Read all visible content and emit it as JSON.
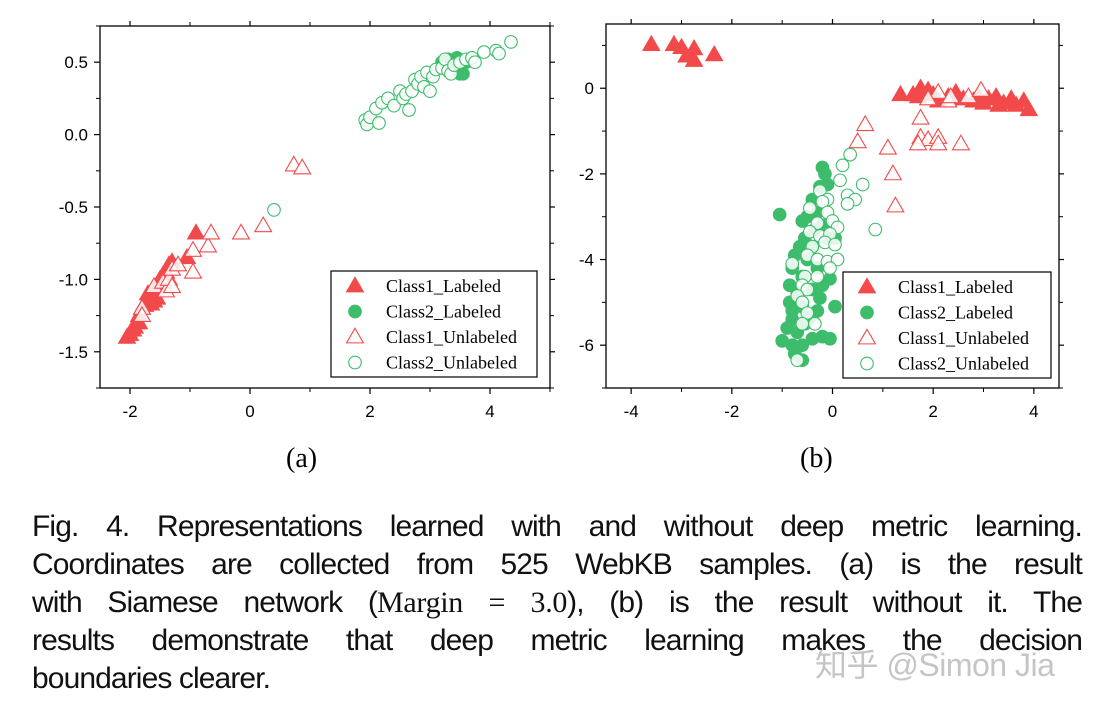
{
  "colors": {
    "class1": "#f24a4a",
    "class2": "#3dbd6b",
    "axis": "#000000"
  },
  "chart_data": [
    {
      "type": "scatter",
      "panel_label": "(a)",
      "xlim": [
        -2.5,
        5
      ],
      "ylim": [
        -1.75,
        0.75
      ],
      "xticks": [
        -2,
        0,
        2,
        4
      ],
      "xtick_labels": [
        "-2",
        "0",
        "2",
        "4"
      ],
      "yticks": [
        0.5,
        0.0,
        -0.5,
        -1.0,
        -1.5
      ],
      "ytick_labels": [
        "0.5",
        "0.0",
        "-0.5",
        "-1.0",
        "-1.5"
      ],
      "grid": false,
      "legend_placement": "bottom-right",
      "series": [
        {
          "name": "Class1_Labeled",
          "marker": "triangle-filled",
          "color": "#f24a4a",
          "points": [
            [
              -2.05,
              -1.4
            ],
            [
              -2.0,
              -1.38
            ],
            [
              -1.95,
              -1.35
            ],
            [
              -1.92,
              -1.33
            ],
            [
              -1.9,
              -1.3
            ],
            [
              -1.85,
              -1.3
            ],
            [
              -1.85,
              -1.25
            ],
            [
              -1.8,
              -1.2
            ],
            [
              -1.75,
              -1.18
            ],
            [
              -1.7,
              -1.15
            ],
            [
              -1.7,
              -1.1
            ],
            [
              -1.65,
              -1.17
            ],
            [
              -1.65,
              -1.12
            ],
            [
              -1.6,
              -1.15
            ],
            [
              -1.6,
              -1.1
            ],
            [
              -1.55,
              -1.13
            ],
            [
              -1.55,
              -1.05
            ],
            [
              -1.5,
              -1.0
            ],
            [
              -1.45,
              -0.97
            ],
            [
              -1.4,
              -0.95
            ],
            [
              -1.35,
              -0.9
            ],
            [
              -1.3,
              -0.88
            ],
            [
              -1.05,
              -0.85
            ],
            [
              -0.9,
              -0.68
            ]
          ]
        },
        {
          "name": "Class2_Labeled",
          "marker": "circle-filled",
          "color": "#3dbd6b",
          "points": [
            [
              3.2,
              0.5
            ],
            [
              3.3,
              0.52
            ],
            [
              3.35,
              0.45
            ],
            [
              3.4,
              0.5
            ],
            [
              3.45,
              0.53
            ],
            [
              3.5,
              0.42
            ],
            [
              3.55,
              0.42
            ],
            [
              3.6,
              0.5
            ]
          ]
        },
        {
          "name": "Class1_Unlabeled",
          "marker": "triangle-open",
          "color": "#f24a4a",
          "points": [
            [
              -1.8,
              -1.2
            ],
            [
              -1.8,
              -1.25
            ],
            [
              -1.6,
              -1.05
            ],
            [
              -1.45,
              -1.02
            ],
            [
              -1.4,
              -1.08
            ],
            [
              -1.35,
              -1.0
            ],
            [
              -1.3,
              -1.05
            ],
            [
              -1.3,
              -0.93
            ],
            [
              -1.2,
              -0.9
            ],
            [
              -0.95,
              -0.95
            ],
            [
              -0.95,
              -0.8
            ],
            [
              -0.7,
              -0.77
            ],
            [
              -0.65,
              -0.68
            ],
            [
              -0.15,
              -0.68
            ],
            [
              0.22,
              -0.63
            ],
            [
              0.73,
              -0.21
            ],
            [
              0.87,
              -0.23
            ]
          ]
        },
        {
          "name": "Class2_Unlabeled",
          "marker": "circle-open",
          "color": "#3dbd6b",
          "points": [
            [
              1.92,
              0.1
            ],
            [
              1.95,
              0.07
            ],
            [
              2.0,
              0.12
            ],
            [
              2.1,
              0.18
            ],
            [
              2.15,
              0.08
            ],
            [
              2.2,
              0.22
            ],
            [
              2.3,
              0.25
            ],
            [
              2.4,
              0.2
            ],
            [
              2.5,
              0.3
            ],
            [
              2.55,
              0.25
            ],
            [
              2.6,
              0.28
            ],
            [
              2.65,
              0.17
            ],
            [
              2.7,
              0.3
            ],
            [
              2.75,
              0.38
            ],
            [
              2.8,
              0.35
            ],
            [
              2.85,
              0.4
            ],
            [
              2.9,
              0.33
            ],
            [
              2.95,
              0.43
            ],
            [
              3.0,
              0.3
            ],
            [
              3.05,
              0.4
            ],
            [
              3.1,
              0.45
            ],
            [
              3.2,
              0.46
            ],
            [
              3.25,
              0.52
            ],
            [
              3.3,
              0.44
            ],
            [
              3.35,
              0.42
            ],
            [
              3.4,
              0.48
            ],
            [
              3.5,
              0.5
            ],
            [
              3.6,
              0.52
            ],
            [
              3.7,
              0.53
            ],
            [
              3.75,
              0.5
            ],
            [
              3.9,
              0.57
            ],
            [
              4.1,
              0.58
            ],
            [
              4.15,
              0.56
            ],
            [
              4.35,
              0.64
            ],
            [
              0.4,
              -0.52
            ]
          ]
        }
      ]
    },
    {
      "type": "scatter",
      "panel_label": "(b)",
      "xlim": [
        -4.5,
        4.5
      ],
      "ylim": [
        -7,
        1.5
      ],
      "xticks": [
        -4,
        -2,
        0,
        2,
        4
      ],
      "xtick_labels": [
        "-4",
        "-2",
        "0",
        "2",
        "4"
      ],
      "yticks": [
        0,
        -2,
        -4,
        -6
      ],
      "ytick_labels": [
        "0",
        "-2",
        "-4",
        "-6"
      ],
      "grid": false,
      "legend_placement": "bottom-right",
      "series": [
        {
          "name": "Class1_Labeled",
          "marker": "triangle-filled",
          "color": "#f24a4a",
          "points": [
            [
              -3.6,
              1.02
            ],
            [
              -3.15,
              1.02
            ],
            [
              -3.0,
              0.95
            ],
            [
              -2.9,
              0.75
            ],
            [
              -2.75,
              0.65
            ],
            [
              -2.75,
              0.92
            ],
            [
              -2.35,
              0.78
            ],
            [
              1.35,
              -0.15
            ],
            [
              1.6,
              -0.15
            ],
            [
              1.7,
              -0.2
            ],
            [
              1.75,
              0.0
            ],
            [
              1.9,
              -0.05
            ],
            [
              2.0,
              -0.15
            ],
            [
              2.1,
              -0.3
            ],
            [
              2.3,
              -0.2
            ],
            [
              2.45,
              -0.1
            ],
            [
              2.6,
              -0.25
            ],
            [
              2.8,
              -0.3
            ],
            [
              2.9,
              -0.2
            ],
            [
              3.0,
              -0.35
            ],
            [
              3.1,
              -0.25
            ],
            [
              3.25,
              -0.2
            ],
            [
              3.3,
              -0.4
            ],
            [
              3.4,
              -0.35
            ],
            [
              3.55,
              -0.25
            ],
            [
              3.65,
              -0.4
            ],
            [
              3.8,
              -0.3
            ],
            [
              3.9,
              -0.5
            ]
          ]
        },
        {
          "name": "Class2_Labeled",
          "marker": "circle-filled",
          "color": "#3dbd6b",
          "points": [
            [
              -1.05,
              -2.95
            ],
            [
              -0.2,
              -1.85
            ],
            [
              -0.15,
              -2.0
            ],
            [
              -0.25,
              -2.3
            ],
            [
              -0.1,
              -2.25
            ],
            [
              -0.4,
              -2.6
            ],
            [
              -0.3,
              -2.9
            ],
            [
              -0.5,
              -3.0
            ],
            [
              -0.6,
              -3.1
            ],
            [
              -0.35,
              -3.3
            ],
            [
              -0.2,
              -3.2
            ],
            [
              -0.55,
              -3.5
            ],
            [
              -0.65,
              -3.7
            ],
            [
              -0.4,
              -3.7
            ],
            [
              -0.1,
              -3.5
            ],
            [
              0.05,
              -3.5
            ],
            [
              -0.75,
              -3.9
            ],
            [
              -0.5,
              -4.0
            ],
            [
              -0.3,
              -4.2
            ],
            [
              -0.8,
              -4.2
            ],
            [
              -0.6,
              -4.4
            ],
            [
              -0.05,
              -4.45
            ],
            [
              -0.85,
              -4.6
            ],
            [
              -0.7,
              -4.8
            ],
            [
              -0.4,
              -4.7
            ],
            [
              -0.2,
              -4.6
            ],
            [
              -0.85,
              -5.0
            ],
            [
              -0.6,
              -5.1
            ],
            [
              -0.3,
              -5.2
            ],
            [
              0.05,
              -5.1
            ],
            [
              -0.8,
              -5.4
            ],
            [
              -0.55,
              -5.5
            ],
            [
              -0.9,
              -5.6
            ],
            [
              -0.7,
              -5.7
            ],
            [
              -0.4,
              -5.85
            ],
            [
              -0.2,
              -5.8
            ],
            [
              -0.05,
              -5.85
            ],
            [
              -1.0,
              -5.9
            ],
            [
              -0.8,
              -6.0
            ],
            [
              -0.6,
              -6.0
            ],
            [
              -0.75,
              -6.2
            ],
            [
              -0.6,
              -6.35
            ],
            [
              -0.8,
              -5.2
            ],
            [
              -0.45,
              -5.35
            ],
            [
              -0.25,
              -4.9
            ]
          ]
        },
        {
          "name": "Class1_Unlabeled",
          "marker": "triangle-open",
          "color": "#f24a4a",
          "points": [
            [
              2.1,
              -0.1
            ],
            [
              1.9,
              -0.25
            ],
            [
              2.3,
              -0.3
            ],
            [
              2.35,
              -0.2
            ],
            [
              2.7,
              -0.2
            ],
            [
              2.95,
              -0.05
            ],
            [
              1.75,
              -0.7
            ],
            [
              1.75,
              -1.15
            ],
            [
              1.9,
              -1.2
            ],
            [
              2.1,
              -1.15
            ],
            [
              2.1,
              -1.3
            ],
            [
              1.7,
              -1.3
            ],
            [
              2.55,
              -1.3
            ],
            [
              0.65,
              -0.85
            ],
            [
              0.5,
              -1.25
            ],
            [
              1.1,
              -1.4
            ],
            [
              1.2,
              -2.0
            ],
            [
              1.25,
              -2.75
            ]
          ]
        },
        {
          "name": "Class2_Unlabeled",
          "marker": "circle-open",
          "color": "#3dbd6b",
          "points": [
            [
              0.35,
              -1.55
            ],
            [
              0.2,
              -1.8
            ],
            [
              0.15,
              -2.15
            ],
            [
              0.6,
              -2.25
            ],
            [
              -0.25,
              -2.4
            ],
            [
              -0.1,
              -2.6
            ],
            [
              0.3,
              -2.5
            ],
            [
              0.45,
              -2.6
            ],
            [
              0.3,
              -2.7
            ],
            [
              -0.2,
              -2.65
            ],
            [
              -0.45,
              -2.8
            ],
            [
              -0.1,
              -2.9
            ],
            [
              0.0,
              -3.1
            ],
            [
              -0.3,
              -3.15
            ],
            [
              0.1,
              -3.25
            ],
            [
              0.85,
              -3.3
            ],
            [
              -0.45,
              -3.35
            ],
            [
              -0.25,
              -3.45
            ],
            [
              -0.05,
              -3.4
            ],
            [
              -0.15,
              -3.6
            ],
            [
              -0.4,
              -3.7
            ],
            [
              0.05,
              -3.65
            ],
            [
              -0.5,
              -3.9
            ],
            [
              -0.3,
              -4.0
            ],
            [
              -0.1,
              -4.05
            ],
            [
              0.1,
              -4.0
            ],
            [
              -0.8,
              -4.1
            ],
            [
              -0.05,
              -4.2
            ],
            [
              -0.55,
              -4.4
            ],
            [
              -0.3,
              -4.4
            ],
            [
              -0.6,
              -4.6
            ],
            [
              -0.5,
              -4.7
            ],
            [
              -0.7,
              -4.85
            ],
            [
              -0.6,
              -5.0
            ],
            [
              -0.5,
              -5.25
            ],
            [
              -0.6,
              -5.5
            ],
            [
              -0.35,
              -5.5
            ],
            [
              -0.7,
              -6.35
            ]
          ]
        }
      ]
    }
  ],
  "legend": [
    "Class1_Labeled",
    "Class2_Labeled",
    "Class1_Unlabeled",
    "Class2_Unlabeled"
  ],
  "caption": {
    "lines": [
      "Fig. 4. Representations learned with and without deep metric learning.",
      "Coordinates are collected from 525 WebKB samples. (a) is the result",
      {
        "before": "with Siamese network (",
        "math": "Margin = 3.0",
        "after": "), (b) is the result without it. The"
      },
      "results demonstrate that deep metric learning makes the decision",
      "boundaries clearer."
    ]
  },
  "watermark": "知乎 @Simon Jia"
}
